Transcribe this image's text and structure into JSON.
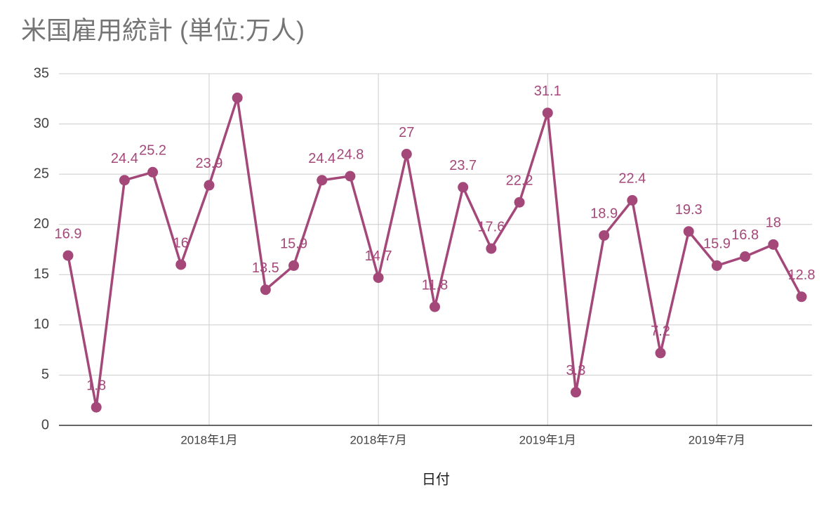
{
  "chart_data": {
    "type": "line",
    "title": "米国雇用統計 (単位:万人)",
    "x_label": "日付",
    "x": [
      "2017-08",
      "2017-09",
      "2017-10",
      "2017-11",
      "2017-12",
      "2018-01",
      "2018-02",
      "2018-03",
      "2018-04",
      "2018-05",
      "2018-06",
      "2018-07",
      "2018-08",
      "2018-09",
      "2018-10",
      "2018-11",
      "2018-12",
      "2019-01",
      "2019-02",
      "2019-03",
      "2019-04",
      "2019-05",
      "2019-06",
      "2019-07",
      "2019-08",
      "2019-09",
      "2019-10"
    ],
    "xlim": [
      "2017-08",
      "2019-10"
    ],
    "xticks": [
      {
        "value": "2018-01",
        "label": "2018年1月"
      },
      {
        "value": "2018-07",
        "label": "2018年7月"
      },
      {
        "value": "2019-01",
        "label": "2019年1月"
      },
      {
        "value": "2019-07",
        "label": "2019年7月"
      }
    ],
    "series": [
      {
        "color": "#a4487a",
        "values": [
          16.9,
          1.8,
          24.4,
          25.2,
          16,
          23.9,
          32.6,
          13.5,
          15.9,
          24.4,
          24.8,
          14.7,
          27,
          11.8,
          23.7,
          17.6,
          22.2,
          31.1,
          3.3,
          18.9,
          22.4,
          7.2,
          19.3,
          15.9,
          16.8,
          18,
          12.8
        ],
        "value_labels": [
          "16.9",
          "1.8",
          "24.4",
          "25.2",
          "16",
          "23.9",
          null,
          "13.5",
          "15.9",
          "24.4",
          "24.8",
          "14.7",
          "27",
          "11.8",
          "23.7",
          "17.6",
          "22.2",
          "31.1",
          "3.3",
          "18.9",
          "22.4",
          "7.2",
          "19.3",
          "15.9",
          "16.8",
          "18",
          "12.8"
        ]
      }
    ],
    "ylim": [
      0,
      35
    ],
    "yticks": [
      0,
      5,
      10,
      15,
      20,
      25,
      30,
      35
    ],
    "grid": true
  }
}
